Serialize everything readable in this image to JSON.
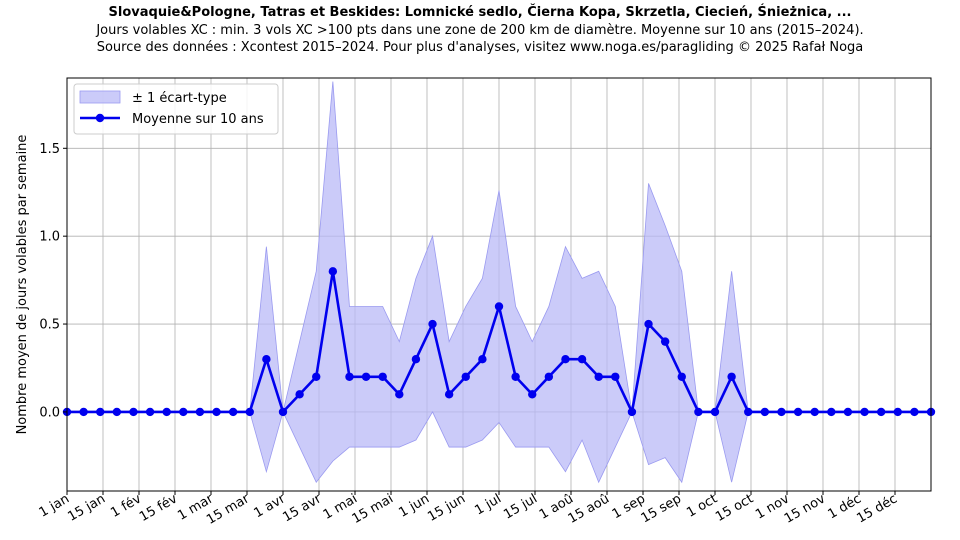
{
  "title": "Slovaquie&Pologne, Tatras et Beskides: Lomnické sedlo, Čierna Kopa, Skrzetla, Ciecień, Śnieżnica, ...",
  "subtitle1": "Jours volables XC : min. 3 vols XC >100 pts dans une zone de 200 km de diamètre. Moyenne sur 10 ans (2015–2024).",
  "subtitle2": "Source des données : Xcontest 2015–2024. Pour plus d'analyses, visitez www.noga.es/paragliding © 2025 Rafał Noga",
  "colors": {
    "line": "#0000ee",
    "band": "#b9b9f7",
    "grid": "#b0b0b0"
  },
  "chart_data": {
    "type": "line",
    "ylabel": "Nombre moyen de jours volables par semaine",
    "xlabel": "",
    "ylim": [
      -0.45,
      1.9
    ],
    "yticks": [
      0.0,
      0.5,
      1.0,
      1.5
    ],
    "ytick_labels": [
      "0.0",
      "0.5",
      "1.0",
      "1.5"
    ],
    "xlim": [
      0,
      52
    ],
    "xtick_labels": [
      "1 jan",
      "15 jan",
      "1 fév",
      "15 fév",
      "1 mar",
      "15 mar",
      "1 avr",
      "15 avr",
      "1 mai",
      "15 mai",
      "1 jun",
      "15 jun",
      "1 jul",
      "15 jul",
      "1 aoû",
      "15 aoû",
      "1 sep",
      "15 sep",
      "1 oct",
      "15 oct",
      "1 nov",
      "15 nov",
      "1 déc",
      "15 déc"
    ],
    "grid": true,
    "legend_position": "top-left",
    "legend": [
      "± 1 écart-type",
      "Moyenne sur 10 ans"
    ],
    "series": [
      {
        "name": "Moyenne sur 10 ans",
        "values": [
          0,
          0,
          0,
          0,
          0,
          0,
          0,
          0,
          0,
          0,
          0,
          0,
          0.3,
          0,
          0.1,
          0.2,
          0.8,
          0.2,
          0.2,
          0.2,
          0.1,
          0.3,
          0.5,
          0.1,
          0.2,
          0.3,
          0.6,
          0.2,
          0.1,
          0.2,
          0.3,
          0.3,
          0.2,
          0.2,
          0,
          0.5,
          0.4,
          0.2,
          0,
          0,
          0.2,
          0,
          0,
          0,
          0,
          0,
          0,
          0,
          0,
          0,
          0,
          0,
          0
        ]
      },
      {
        "name": "± 1 écart-type",
        "lower": [
          0,
          0,
          0,
          0,
          0,
          0,
          0,
          0,
          0,
          0,
          0,
          0,
          -0.34,
          0,
          -0.2,
          -0.4,
          -0.28,
          -0.2,
          -0.2,
          -0.2,
          -0.2,
          -0.16,
          0,
          -0.2,
          -0.2,
          -0.16,
          -0.06,
          -0.2,
          -0.2,
          -0.2,
          -0.34,
          -0.16,
          -0.4,
          -0.2,
          0,
          -0.3,
          -0.26,
          -0.4,
          0,
          0,
          -0.4,
          0,
          0,
          0,
          0,
          0,
          0,
          0,
          0,
          0,
          0,
          0,
          0
        ],
        "upper": [
          0,
          0,
          0,
          0,
          0,
          0,
          0,
          0,
          0,
          0,
          0,
          0,
          0.94,
          0,
          0.4,
          0.8,
          1.88,
          0.6,
          0.6,
          0.6,
          0.4,
          0.76,
          1.0,
          0.4,
          0.6,
          0.76,
          1.26,
          0.6,
          0.4,
          0.6,
          0.94,
          0.76,
          0.8,
          0.6,
          0,
          1.3,
          1.06,
          0.8,
          0,
          0,
          0.8,
          0,
          0,
          0,
          0,
          0,
          0,
          0,
          0,
          0,
          0,
          0,
          0
        ]
      }
    ]
  }
}
